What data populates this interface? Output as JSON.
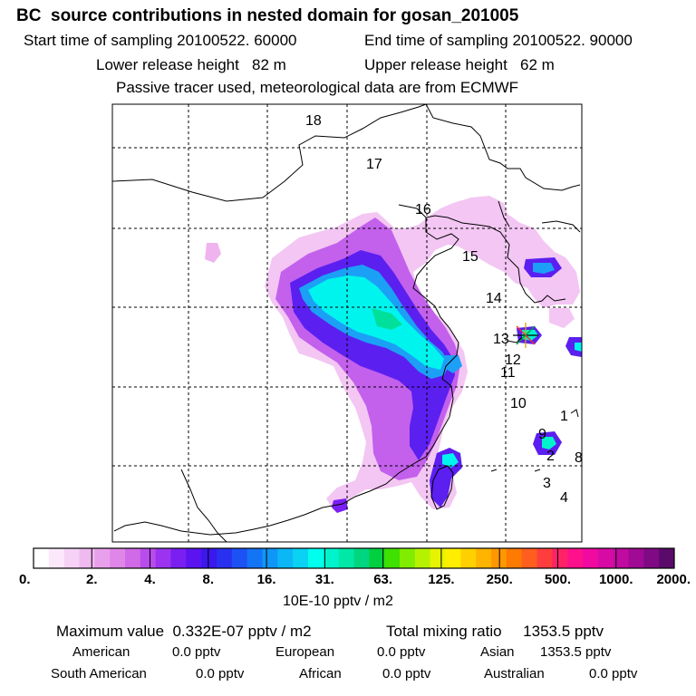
{
  "header": {
    "title": "BC  source contributions in nested domain for gosan_201005",
    "start_time": "Start time of sampling 20100522. 60000",
    "end_time": "End time of sampling 20100522. 90000",
    "lower_height": "Lower release height   82 m",
    "upper_height": "Upper release height   62 m",
    "tracer_note": "Passive tracer used, meteorological data are from ECMWF"
  },
  "map": {
    "trajectory_labels": [
      "18",
      "17",
      "16",
      "15",
      "14",
      "13",
      "12",
      "11",
      "10",
      "1",
      "9",
      "2",
      "8",
      "3",
      "4"
    ],
    "receptor_marker": "star-icon"
  },
  "colorbar": {
    "tick_labels": [
      "0.",
      "2.",
      "4.",
      "8.",
      "16.",
      "31.",
      "63.",
      "125.",
      "250.",
      "500.",
      "1000.",
      "2000."
    ],
    "colors": [
      "#ffffff",
      "#fbe9fb",
      "#f6d2f6",
      "#f0b9f0",
      "#e9a0ec",
      "#df86e8",
      "#d06ae6",
      "#b84cec",
      "#9b33f0",
      "#7a1ff2",
      "#5b14f0",
      "#3a18ee",
      "#2a30f0",
      "#1c52f4",
      "#1474f6",
      "#0f96f6",
      "#0cb7f6",
      "#0ad2f2",
      "#00ffee",
      "#00f4cc",
      "#00e8a6",
      "#00d680",
      "#00d040",
      "#40e000",
      "#80ec00",
      "#b6f200",
      "#e6f400",
      "#ffee00",
      "#ffd000",
      "#ffb400",
      "#ff9800",
      "#ff7a00",
      "#ff5e1e",
      "#ff3d3d",
      "#ff2266",
      "#ff118c",
      "#f00aa0",
      "#d80aa6",
      "#c00aa0",
      "#a00a94",
      "#800a84",
      "#5a0a6a"
    ],
    "unit": "10E-10 pptv / m2"
  },
  "summary": {
    "max_value": "Maximum value  0.332E-07 pptv / m2",
    "total": "Total mixing ratio     1353.5 pptv",
    "american_label": "American",
    "american_value": "0.0 pptv",
    "european_label": "European",
    "european_value": "0.0 pptv",
    "asian_label": "Asian",
    "asian_value": "1353.5 pptv",
    "south_american_label": "South American",
    "south_american_value": "0.0 pptv",
    "african_label": "African",
    "african_value": "0.0 pptv",
    "australian_label": "Australian",
    "australian_value": "0.0 pptv"
  }
}
